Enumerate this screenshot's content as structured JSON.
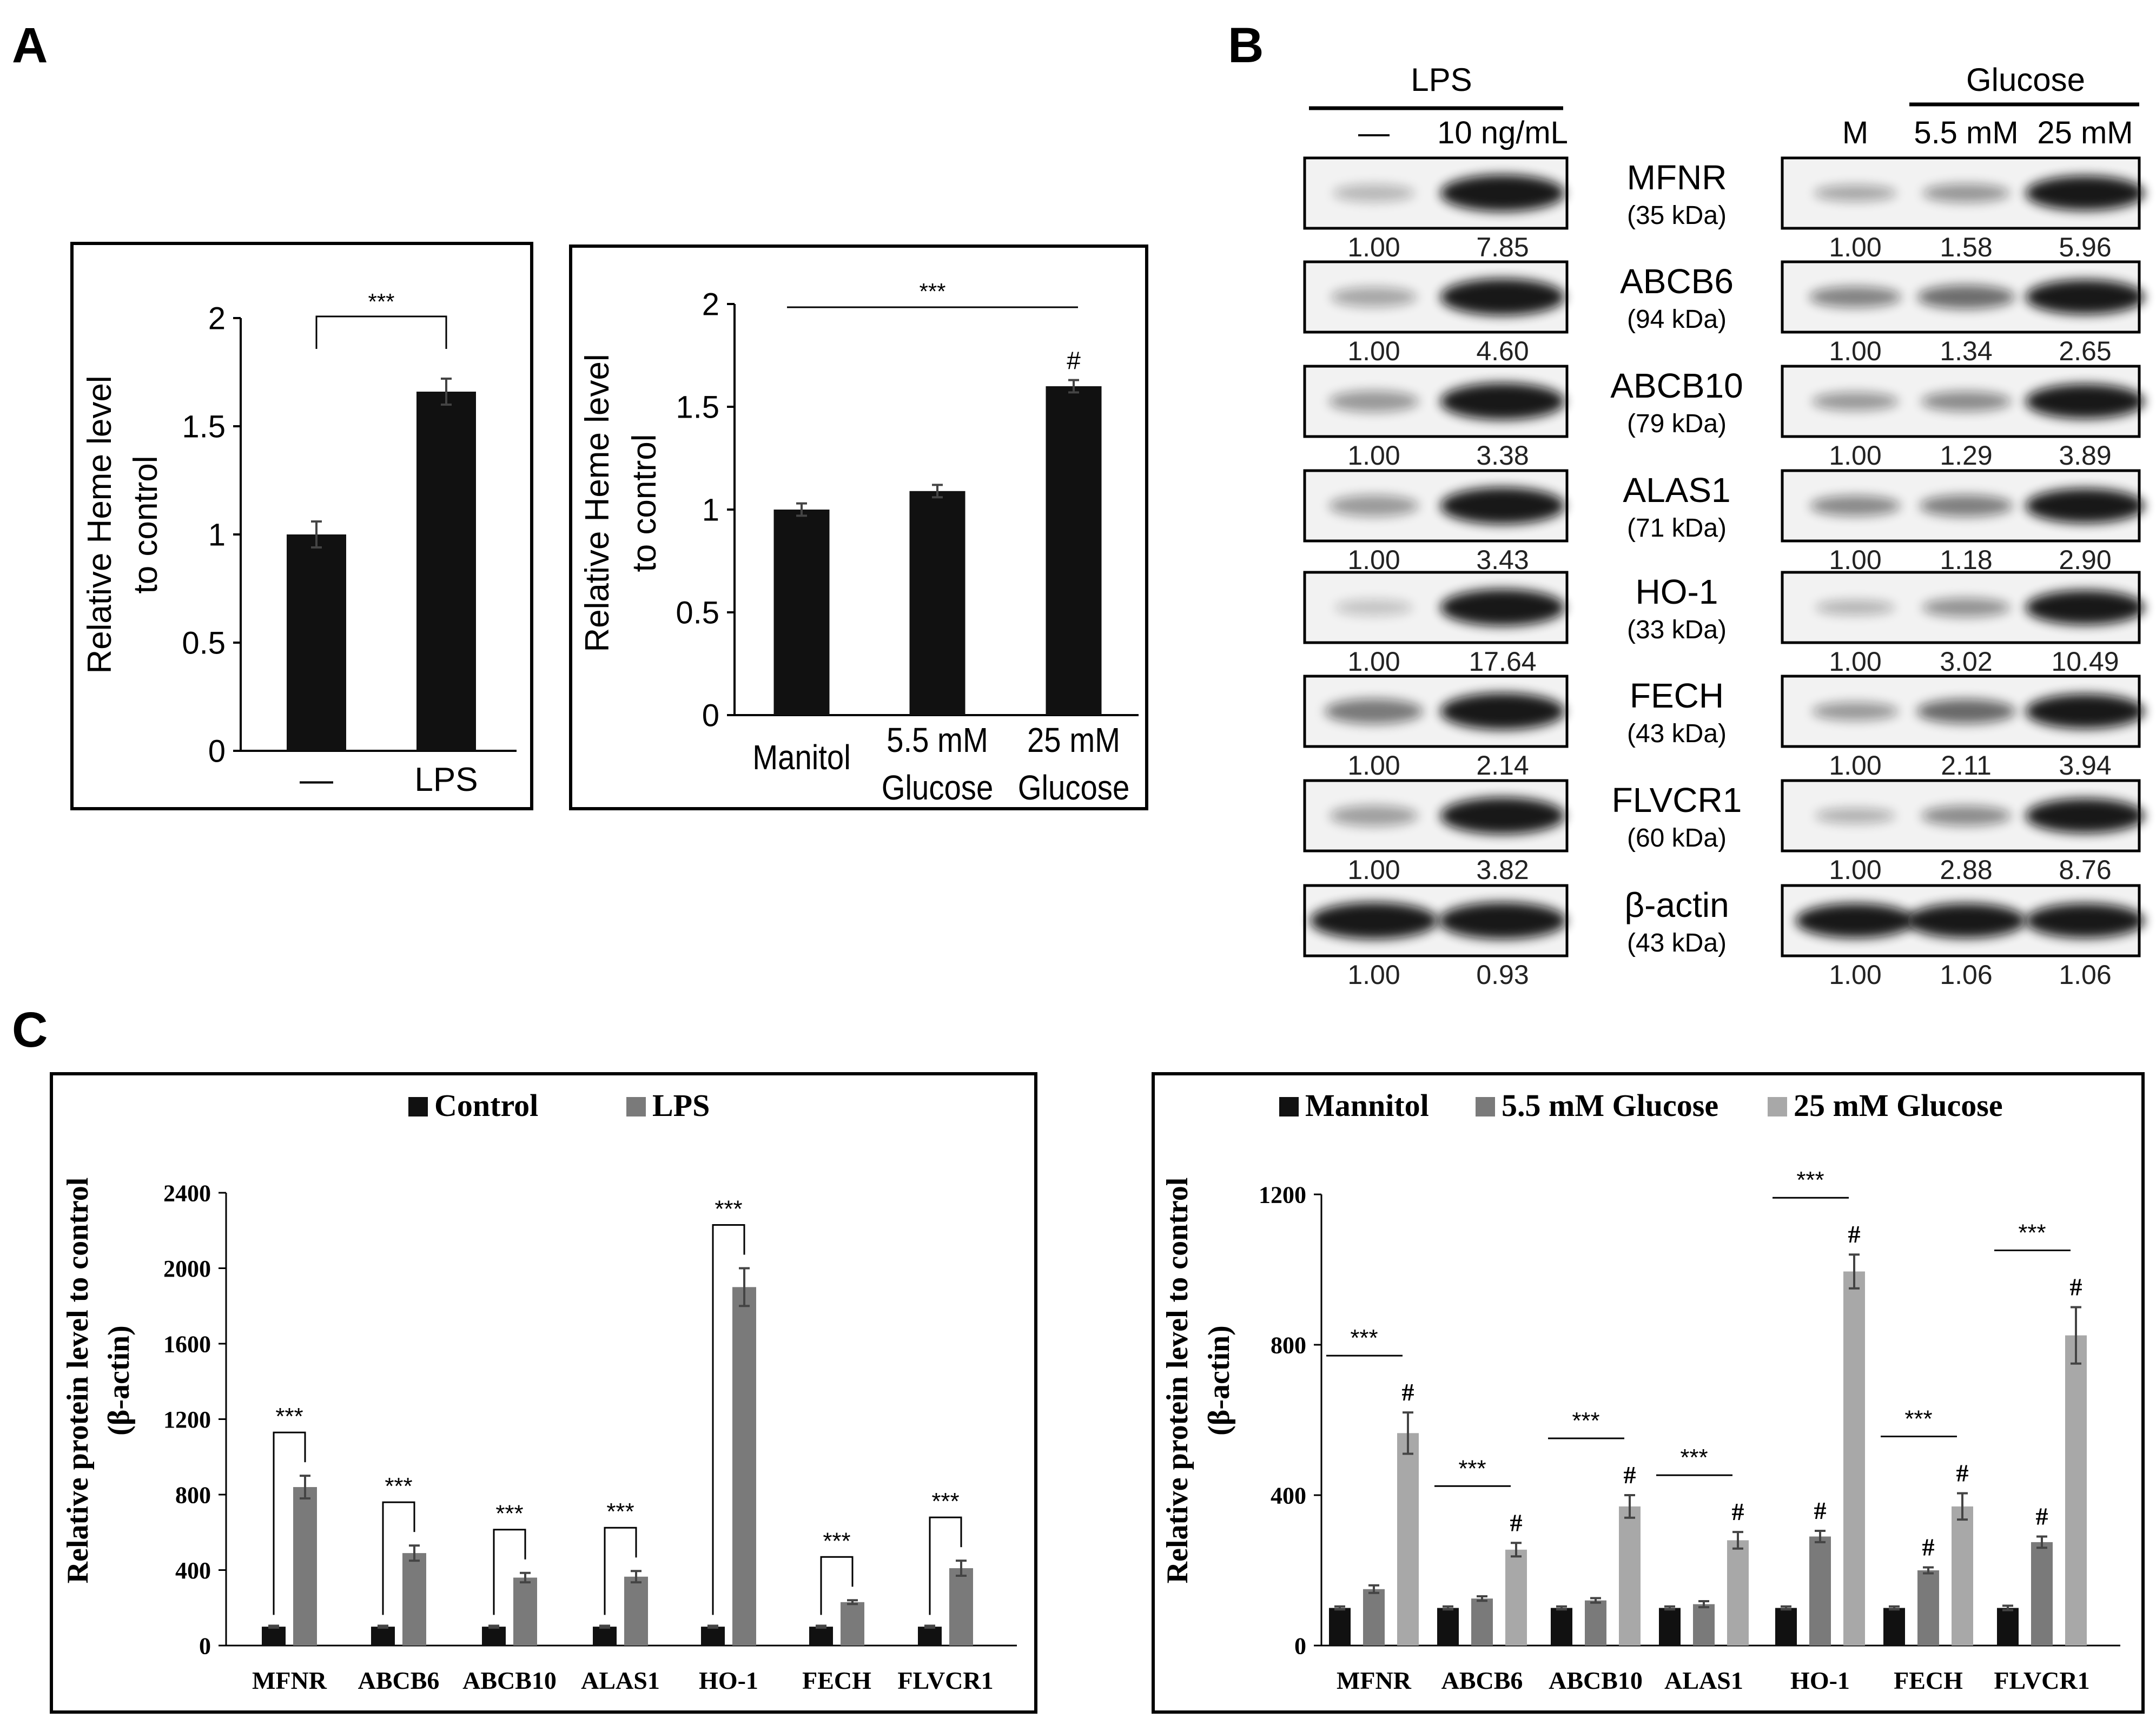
{
  "panel_labels": {
    "a": "A",
    "b": "B",
    "c": "C"
  },
  "colors": {
    "black": "#111111",
    "dark_gray": "#7a7a7a",
    "light_gray": "#a8a8a8",
    "frame": "#000000"
  },
  "chart_data": [
    {
      "id": "A1",
      "type": "bar",
      "ylabel_line1": "Relative Heme level",
      "ylabel_line2": "to control",
      "ylim": [
        0,
        2
      ],
      "yticks": [
        "0",
        "0.5",
        "1",
        "1.5",
        "2"
      ],
      "categories": [
        "—",
        "LPS"
      ],
      "values": [
        1.0,
        1.66
      ],
      "errors": [
        0.06,
        0.06
      ],
      "sig": "***"
    },
    {
      "id": "A2",
      "type": "bar",
      "ylabel_line1": "Relative Heme level",
      "ylabel_line2": "to control",
      "ylim": [
        0,
        2
      ],
      "yticks": [
        "0",
        "0.5",
        "1",
        "1.5",
        "2"
      ],
      "categories": [
        [
          "Manitol"
        ],
        [
          "5.5 mM",
          "Glucose"
        ],
        [
          "25 mM",
          "Glucose"
        ]
      ],
      "values": [
        1.0,
        1.09,
        1.6
      ],
      "errors": [
        0.03,
        0.03,
        0.03
      ],
      "sig": "***",
      "hash": "#"
    },
    {
      "id": "C1",
      "type": "bar",
      "legend": [
        "Control",
        "LPS"
      ],
      "ylabel_line1": "Relative protein level to control",
      "ylabel_line2": "(β-actin)",
      "ylim": [
        0,
        2400
      ],
      "yticks": [
        "0",
        "400",
        "800",
        "1200",
        "1600",
        "2000",
        "2400"
      ],
      "categories": [
        "MFNR",
        "ABCB6",
        "ABCB10",
        "ALAS1",
        "HO-1",
        "FECH",
        "FLVCR1"
      ],
      "series": [
        {
          "name": "Control",
          "values": [
            100,
            100,
            100,
            100,
            100,
            100,
            100
          ],
          "errors": [
            5,
            5,
            5,
            5,
            5,
            5,
            5
          ]
        },
        {
          "name": "LPS",
          "values": [
            840,
            490,
            360,
            365,
            1900,
            230,
            410
          ],
          "errors": [
            60,
            40,
            25,
            30,
            100,
            10,
            40
          ]
        }
      ],
      "sig": "***"
    },
    {
      "id": "C2",
      "type": "bar",
      "legend": [
        "Mannitol",
        "5.5 mM Glucose",
        "25 mM Glucose"
      ],
      "ylabel_line1": "Relative protein level to control",
      "ylabel_line2": "(β-actin)",
      "ylim": [
        0,
        1200
      ],
      "yticks": [
        "0",
        "400",
        "800",
        "1200"
      ],
      "categories": [
        "MFNR",
        "ABCB6",
        "ABCB10",
        "ALAS1",
        "HO-1",
        "FECH",
        "FLVCR1"
      ],
      "series": [
        {
          "name": "Mannitol",
          "values": [
            100,
            100,
            100,
            100,
            100,
            100,
            100
          ],
          "errors": [
            4,
            4,
            4,
            4,
            4,
            4,
            6
          ]
        },
        {
          "name": "5.5 mM Glucose",
          "values": [
            150,
            125,
            120,
            110,
            290,
            200,
            275
          ],
          "errors": [
            10,
            6,
            6,
            8,
            15,
            8,
            15
          ]
        },
        {
          "name": "25 mM Glucose",
          "values": [
            565,
            255,
            370,
            280,
            995,
            370,
            825
          ],
          "errors": [
            55,
            18,
            30,
            22,
            45,
            35,
            75
          ]
        }
      ],
      "sig": "***",
      "hash": "#"
    }
  ],
  "blot": {
    "lps_header": "LPS",
    "lps_lanes": [
      "—",
      "10 ng/mL"
    ],
    "glucose_header": "Glucose",
    "glucose_lanes": [
      "M",
      "5.5 mM",
      "25 mM"
    ],
    "proteins": [
      {
        "name": "MFNR",
        "kda": "(35 kDa)",
        "lps": [
          "1.00",
          "7.85"
        ],
        "glu": [
          "1.00",
          "1.58",
          "5.96"
        ]
      },
      {
        "name": "ABCB6",
        "kda": "(94 kDa)",
        "lps": [
          "1.00",
          "4.60"
        ],
        "glu": [
          "1.00",
          "1.34",
          "2.65"
        ]
      },
      {
        "name": "ABCB10",
        "kda": "(79 kDa)",
        "lps": [
          "1.00",
          "3.38"
        ],
        "glu": [
          "1.00",
          "1.29",
          "3.89"
        ]
      },
      {
        "name": "ALAS1",
        "kda": "(71 kDa)",
        "lps": [
          "1.00",
          "3.43"
        ],
        "glu": [
          "1.00",
          "1.18",
          "2.90"
        ]
      },
      {
        "name": "HO-1",
        "kda": "(33 kDa)",
        "lps": [
          "1.00",
          "17.64"
        ],
        "glu": [
          "1.00",
          "3.02",
          "10.49"
        ]
      },
      {
        "name": "FECH",
        "kda": "(43 kDa)",
        "lps": [
          "1.00",
          "2.14"
        ],
        "glu": [
          "1.00",
          "2.11",
          "3.94"
        ]
      },
      {
        "name": "FLVCR1",
        "kda": "(60 kDa)",
        "lps": [
          "1.00",
          "3.82"
        ],
        "glu": [
          "1.00",
          "2.88",
          "8.76"
        ]
      },
      {
        "name": "β-actin",
        "kda": "(43 kDa)",
        "lps": [
          "1.00",
          "0.93"
        ],
        "glu": [
          "1.00",
          "1.06",
          "1.06"
        ]
      }
    ]
  }
}
